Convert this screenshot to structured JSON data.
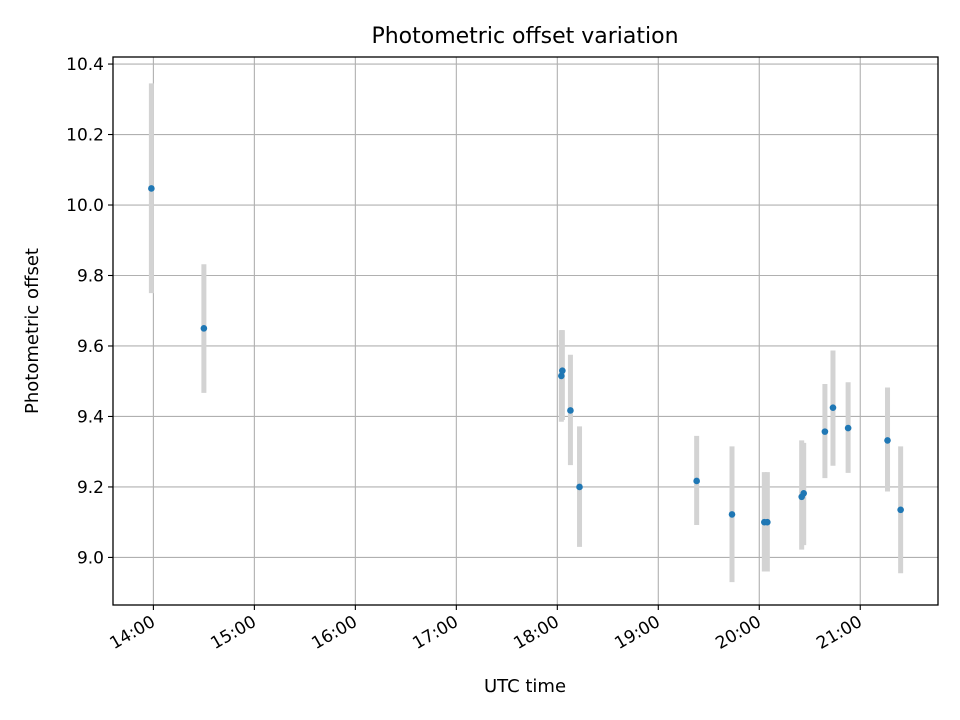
{
  "chart_data": {
    "type": "scatter",
    "title": "Photometric offset variation",
    "xlabel": "UTC time",
    "ylabel": "Photometric offset",
    "x_unit": "hours UTC",
    "xlim": [
      13.6,
      21.77
    ],
    "ylim": [
      8.865,
      10.42
    ],
    "x_ticks": [
      {
        "value": 14,
        "label": "14:00"
      },
      {
        "value": 15,
        "label": "15:00"
      },
      {
        "value": 16,
        "label": "16:00"
      },
      {
        "value": 17,
        "label": "17:00"
      },
      {
        "value": 18,
        "label": "18:00"
      },
      {
        "value": 19,
        "label": "19:00"
      },
      {
        "value": 20,
        "label": "20:00"
      },
      {
        "value": 21,
        "label": "21:00"
      }
    ],
    "y_ticks": [
      {
        "value": 9.0,
        "label": "9.0"
      },
      {
        "value": 9.2,
        "label": "9.2"
      },
      {
        "value": 9.4,
        "label": "9.4"
      },
      {
        "value": 9.6,
        "label": "9.6"
      },
      {
        "value": 9.8,
        "label": "9.8"
      },
      {
        "value": 10.0,
        "label": "10.0"
      },
      {
        "value": 10.2,
        "label": "10.2"
      },
      {
        "value": 10.4,
        "label": "10.4"
      }
    ],
    "grid": true,
    "colors": {
      "point": "#1f77b4",
      "errorbar": "#d3d3d3",
      "grid": "#b0b0b0"
    },
    "points": [
      {
        "x": 13.98,
        "y": 10.047,
        "err_low": 9.75,
        "err_high": 10.345
      },
      {
        "x": 14.5,
        "y": 9.65,
        "err_low": 9.467,
        "err_high": 9.832
      },
      {
        "x": 18.04,
        "y": 9.515,
        "err_low": 9.385,
        "err_high": 9.645
      },
      {
        "x": 18.05,
        "y": 9.53,
        "err_low": 9.39,
        "err_high": 9.645
      },
      {
        "x": 18.13,
        "y": 9.417,
        "err_low": 9.262,
        "err_high": 9.575
      },
      {
        "x": 18.22,
        "y": 9.2,
        "err_low": 9.03,
        "err_high": 9.372
      },
      {
        "x": 19.38,
        "y": 9.217,
        "err_low": 9.092,
        "err_high": 9.345
      },
      {
        "x": 19.73,
        "y": 9.122,
        "err_low": 8.93,
        "err_high": 9.315
      },
      {
        "x": 20.05,
        "y": 9.1,
        "err_low": 8.96,
        "err_high": 9.242
      },
      {
        "x": 20.08,
        "y": 9.1,
        "err_low": 8.96,
        "err_high": 9.242
      },
      {
        "x": 20.42,
        "y": 9.172,
        "err_low": 9.022,
        "err_high": 9.332
      },
      {
        "x": 20.44,
        "y": 9.182,
        "err_low": 9.035,
        "err_high": 9.325
      },
      {
        "x": 20.65,
        "y": 9.357,
        "err_low": 9.225,
        "err_high": 9.492
      },
      {
        "x": 20.73,
        "y": 9.425,
        "err_low": 9.26,
        "err_high": 9.587
      },
      {
        "x": 20.88,
        "y": 9.367,
        "err_low": 9.24,
        "err_high": 9.497
      },
      {
        "x": 21.27,
        "y": 9.332,
        "err_low": 9.187,
        "err_high": 9.482
      },
      {
        "x": 21.4,
        "y": 9.135,
        "err_low": 8.955,
        "err_high": 9.315
      }
    ]
  }
}
